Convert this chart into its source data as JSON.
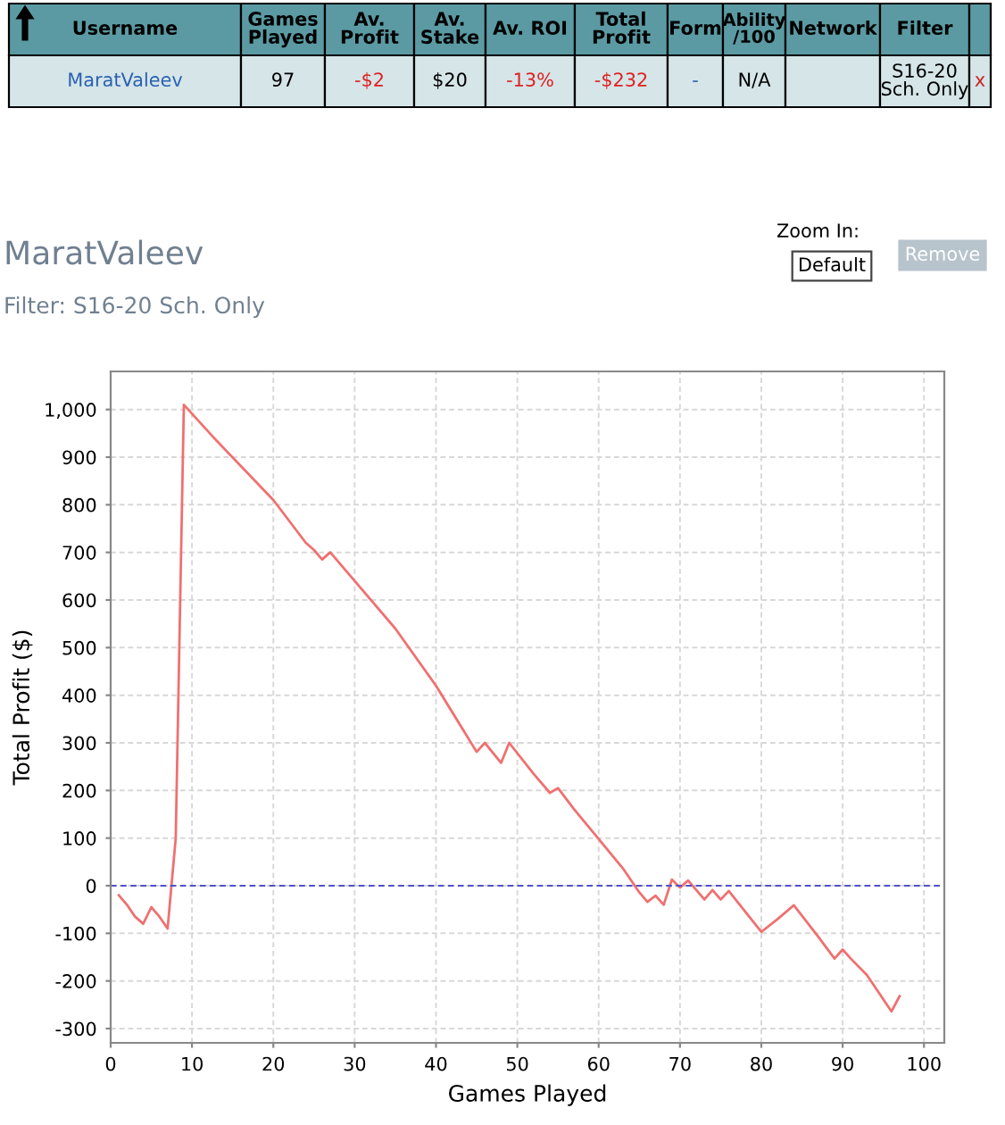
{
  "chart_data": [
    {
      "type": "other",
      "annotations": [
        "Username",
        "Games\nPlayed",
        "Av.\nProfit",
        "Av.\nStake",
        "Av. ROI",
        "Total\nProfit",
        "Form",
        "Ability\n/100",
        "Network",
        "Filter",
        null,
        "MaratValeev",
        "97",
        "-$2",
        "$20",
        "-13%",
        "-$232",
        "-",
        "N/A",
        null,
        "S16-20\nSch. Only",
        "x"
      ]
    },
    {
      "type": "line",
      "title": "MaratValeev",
      "subtitle": "Filter: S16-20 Sch. Only",
      "xlabel": "Games Played",
      "ylabel": "Total Profit ($)",
      "annotations": [
        "Zoom In:",
        "Default",
        "Remove"
      ],
      "x": [
        1,
        2,
        3,
        4,
        5,
        6,
        7,
        8,
        9,
        13,
        20,
        24,
        25,
        26,
        27,
        30,
        35,
        40,
        45,
        46,
        48,
        49,
        52,
        54,
        55,
        57,
        60,
        63,
        65,
        66,
        67,
        68,
        69,
        70,
        71,
        73,
        74,
        75,
        76,
        80,
        82,
        84,
        87,
        89,
        90,
        91,
        93,
        96,
        97
      ],
      "series": [
        {
          "color": "#f07070",
          "values": [
            -20,
            -40,
            -65,
            -80,
            -45,
            -65,
            -90,
            100,
            1010,
            935,
            810,
            720,
            705,
            685,
            700,
            640,
            540,
            420,
            281,
            300,
            258,
            300,
            235,
            195,
            205,
            160,
            98,
            36,
            -14,
            -34,
            -21,
            -40,
            13,
            -4,
            11,
            -29,
            -9,
            -29,
            -11,
            -97,
            -70,
            -41,
            -107,
            -153,
            -134,
            -153,
            -188,
            -264,
            -232
          ]
        }
      ],
      "xlim": [
        0,
        102.5
      ],
      "ylim": [
        -330,
        1080
      ],
      "xticks": [
        0,
        10,
        20,
        30,
        40,
        50,
        60,
        70,
        80,
        90,
        100
      ],
      "yticks": [
        -300,
        -200,
        -100,
        0,
        100,
        200,
        300,
        400,
        500,
        600,
        700,
        800,
        900,
        {
          "value": 1000,
          "label": "1,000"
        }
      ],
      "ref_lines": [
        {
          "axis": "y",
          "value": 0,
          "color": "#5050c8",
          "line_style": "dashed"
        }
      ],
      "grid": true,
      "marker": "none",
      "line_style": "solid",
      "legend": false
    }
  ]
}
